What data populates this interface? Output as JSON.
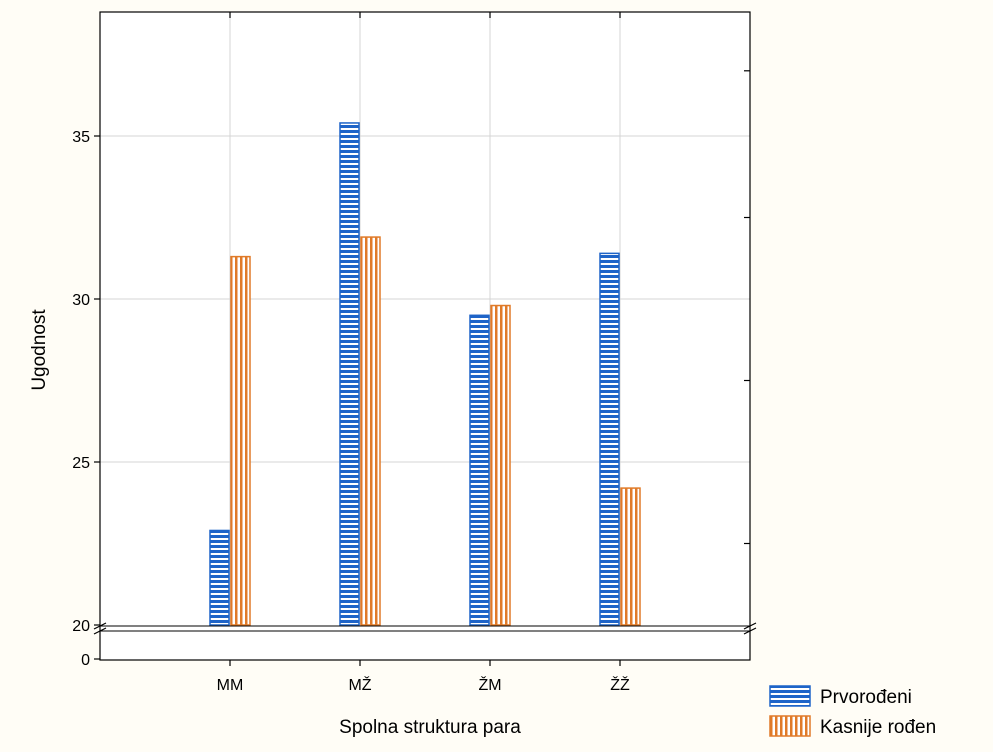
{
  "chart_data": {
    "type": "bar",
    "title": "",
    "xlabel": "Spolna struktura para",
    "ylabel": "Ugodnost",
    "categories": [
      "MM",
      "MŽ",
      "ŽM",
      "ŽŽ"
    ],
    "ylim": [
      20,
      38
    ],
    "yticks": [
      20,
      25,
      30,
      35
    ],
    "axis_break": true,
    "axis_break_tick": "0",
    "grid": true,
    "legend_position": "bottom-right",
    "series": [
      {
        "name": "Prvorođeni",
        "values": [
          22.9,
          35.4,
          29.5,
          31.4
        ],
        "fill": "#1e64c8",
        "pattern": "horizontal-stripes"
      },
      {
        "name": "Kasnije rođen",
        "values": [
          31.3,
          31.9,
          29.8,
          24.2
        ],
        "fill": "#e07a28",
        "pattern": "vertical-stripes"
      }
    ]
  }
}
